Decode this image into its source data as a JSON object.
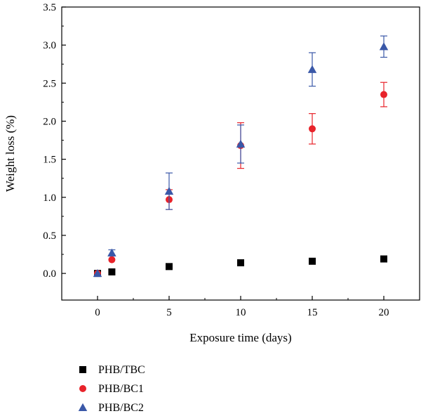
{
  "chart_data": {
    "type": "scatter",
    "title": "",
    "xlabel": "Exposure time (days)",
    "ylabel": "Weight loss (%)",
    "xlim": [
      -2.5,
      22.5
    ],
    "ylim": [
      -0.35,
      3.5
    ],
    "xticks": [
      0,
      5,
      10,
      15,
      20
    ],
    "xtick_labels": [
      "0",
      "5",
      "10",
      "15",
      "20"
    ],
    "yticks": [
      0.0,
      0.5,
      1.0,
      1.5,
      2.0,
      2.5,
      3.0,
      3.5
    ],
    "ytick_labels": [
      "0.0",
      "0.5",
      "1.0",
      "1.5",
      "2.0",
      "2.5",
      "3.0",
      "3.5"
    ],
    "grid": false,
    "legend_position": "bottom-left, below plot",
    "series": [
      {
        "name": "PHB/TBC",
        "marker": "square",
        "color": "#000000",
        "x": [
          0,
          1,
          5,
          10,
          15,
          20
        ],
        "y": [
          0.0,
          0.02,
          0.09,
          0.14,
          0.16,
          0.19
        ],
        "err": [
          0,
          0,
          0,
          0,
          0,
          0
        ]
      },
      {
        "name": "PHB/BC1",
        "marker": "circle",
        "color": "#e8232a",
        "x": [
          0,
          1,
          5,
          10,
          15,
          20
        ],
        "y": [
          0.0,
          0.18,
          0.97,
          1.68,
          1.9,
          2.35
        ],
        "err": [
          0,
          0,
          0.13,
          0.3,
          0.2,
          0.16
        ]
      },
      {
        "name": "PHB/BC2",
        "marker": "triangle",
        "color": "#3a58a8",
        "x": [
          0,
          1,
          5,
          10,
          15,
          20
        ],
        "y": [
          0.0,
          0.27,
          1.08,
          1.7,
          2.68,
          2.98
        ],
        "err": [
          0,
          0.04,
          0.24,
          0.25,
          0.22,
          0.14
        ]
      }
    ]
  }
}
